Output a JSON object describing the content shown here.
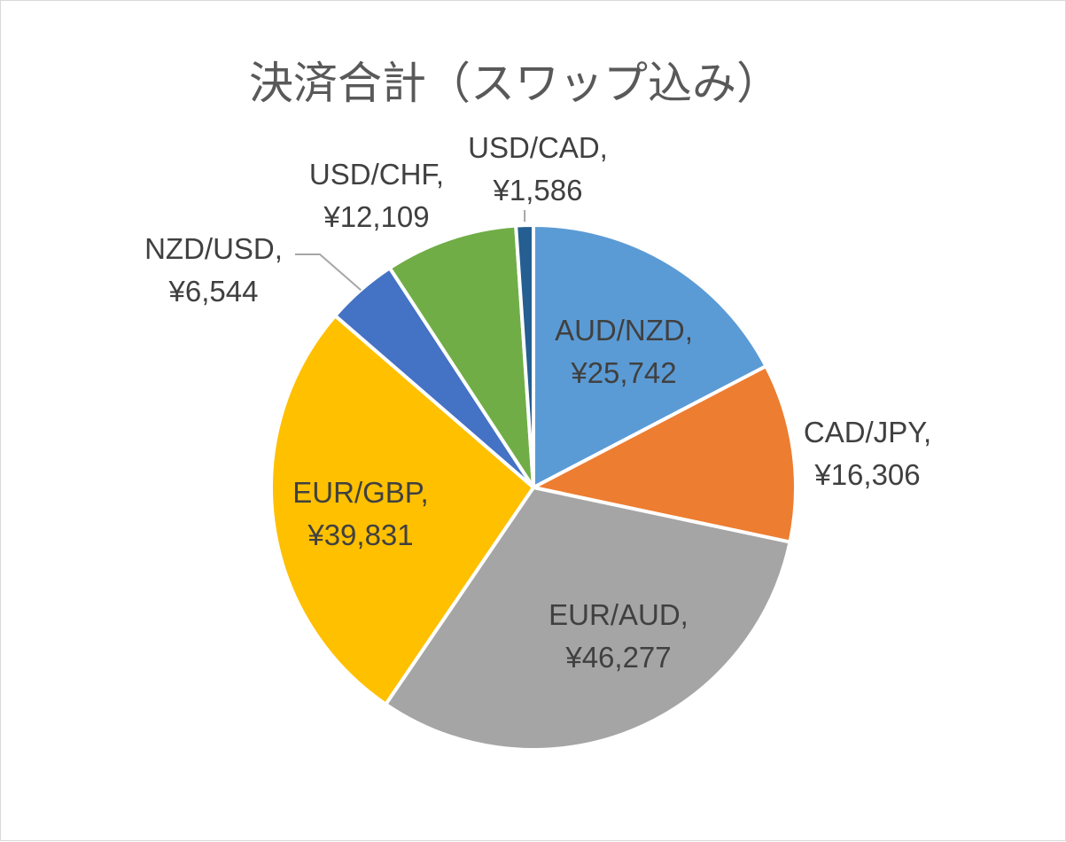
{
  "chart_data": {
    "type": "pie",
    "title": "決済合計（スワップ込み）",
    "slices": [
      {
        "category": "AUD/NZD",
        "value": 25742,
        "value_label": "¥25,742",
        "color": "#5B9BD5"
      },
      {
        "category": "CAD/JPY",
        "value": 16306,
        "value_label": "¥16,306",
        "color": "#ED7D31"
      },
      {
        "category": "EUR/AUD",
        "value": 46277,
        "value_label": "¥46,277",
        "color": "#A5A5A5"
      },
      {
        "category": "EUR/GBP",
        "value": 39831,
        "value_label": "¥39,831",
        "color": "#FFC000"
      },
      {
        "category": "NZD/USD",
        "value": 6544,
        "value_label": "¥6,544",
        "color": "#4472C4"
      },
      {
        "category": "USD/CHF",
        "value": 12109,
        "value_label": "¥12,109",
        "color": "#70AD47"
      },
      {
        "category": "USD/CAD",
        "value": 1586,
        "value_label": "¥1,586",
        "color": "#255E91"
      }
    ],
    "legend": "none",
    "data_labels": "category, value"
  }
}
